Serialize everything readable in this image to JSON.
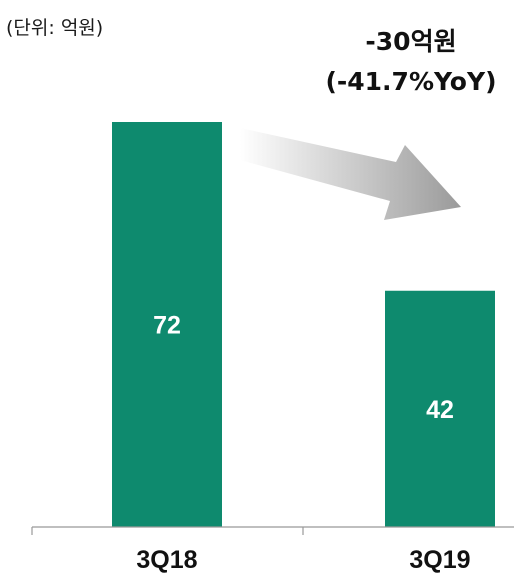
{
  "chart_data": {
    "type": "bar",
    "unit_label": "(단위: 억원)",
    "categories": [
      "3Q18",
      "3Q19"
    ],
    "values": [
      72,
      42
    ],
    "data_labels": [
      "72",
      "42"
    ],
    "ylim": [
      0,
      72
    ],
    "grid": false,
    "bar_color": "#0e8a6e",
    "arrow_color": "#9a9a9a",
    "annotation": {
      "line1": "-30억원",
      "line2": "(-41.7%YoY)"
    }
  }
}
